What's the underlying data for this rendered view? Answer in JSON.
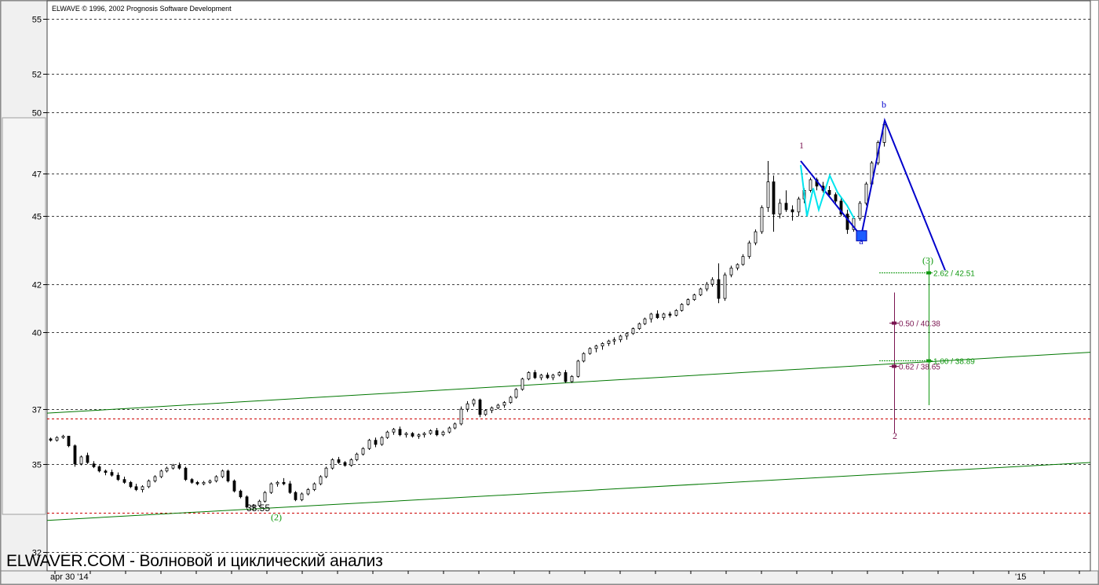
{
  "header": {
    "copyright": "ELWAVE © 1996, 2002 Prognosis Software Development"
  },
  "footer": {
    "watermark": "ELWAVER.COM - Волновой и циклический анализ"
  },
  "x_axis": {
    "start_label": "apr 30 '14",
    "end_label": "'15"
  },
  "colors": {
    "wave_blue": "#0000cc",
    "wave_cyan": "#00e5ee",
    "channel_green": "#007700",
    "target_green": "#119911",
    "target_purple": "#7a1450",
    "red_dotted": "#cc0000",
    "marker_square": "#1c5cff"
  },
  "chart_data": {
    "type": "candlestick",
    "title": "",
    "y_ticks": [
      55,
      52,
      50,
      47,
      45,
      42,
      40,
      37,
      35,
      32
    ],
    "ylim": [
      31.4,
      56
    ],
    "y_scale": "log",
    "grid": true,
    "low_label": "33.55",
    "wave_labels": [
      "1",
      "a",
      "b",
      "(2)",
      "(3)",
      "2"
    ],
    "targets": [
      {
        "label": "2.62 / 42.51",
        "value": 42.51,
        "color": "green"
      },
      {
        "label": "0.50 / 40.38",
        "value": 40.38,
        "color": "purple"
      },
      {
        "label": "1.00 / 38.89",
        "value": 38.89,
        "color": "green"
      },
      {
        "label": "0.62 / 38.65",
        "value": 38.65,
        "color": "purple"
      }
    ],
    "red_levels": [
      36.65,
      33.3
    ],
    "wave_points": {
      "w1": 47.6,
      "a": 44.1,
      "b": 49.6,
      "projection": 42.6
    },
    "candles": [
      [
        35.9,
        35.95,
        35.8,
        35.85
      ],
      [
        35.85,
        36.0,
        35.8,
        35.95
      ],
      [
        35.95,
        36.05,
        35.9,
        36.0
      ],
      [
        36.0,
        36.0,
        35.6,
        35.65
      ],
      [
        35.65,
        35.7,
        34.9,
        35.0
      ],
      [
        35.0,
        35.3,
        34.95,
        35.25
      ],
      [
        35.3,
        35.4,
        35.0,
        35.05
      ],
      [
        35.0,
        35.1,
        34.85,
        34.9
      ],
      [
        34.9,
        34.95,
        34.7,
        34.75
      ],
      [
        34.75,
        34.8,
        34.6,
        34.7
      ],
      [
        34.7,
        34.8,
        34.55,
        34.6
      ],
      [
        34.6,
        34.7,
        34.4,
        34.45
      ],
      [
        34.45,
        34.55,
        34.3,
        34.35
      ],
      [
        34.35,
        34.4,
        34.15,
        34.2
      ],
      [
        34.2,
        34.3,
        34.05,
        34.1
      ],
      [
        34.1,
        34.25,
        34.0,
        34.2
      ],
      [
        34.2,
        34.45,
        34.15,
        34.4
      ],
      [
        34.4,
        34.6,
        34.35,
        34.55
      ],
      [
        34.55,
        34.8,
        34.5,
        34.75
      ],
      [
        34.75,
        34.9,
        34.7,
        34.85
      ],
      [
        34.85,
        35.0,
        34.8,
        34.95
      ],
      [
        34.95,
        35.05,
        34.8,
        34.85
      ],
      [
        34.85,
        34.9,
        34.4,
        34.45
      ],
      [
        34.45,
        34.5,
        34.3,
        34.35
      ],
      [
        34.35,
        34.4,
        34.25,
        34.3
      ],
      [
        34.3,
        34.4,
        34.25,
        34.35
      ],
      [
        34.35,
        34.45,
        34.3,
        34.4
      ],
      [
        34.4,
        34.6,
        34.35,
        34.55
      ],
      [
        34.55,
        34.8,
        34.5,
        34.75
      ],
      [
        34.75,
        34.8,
        34.35,
        34.4
      ],
      [
        34.4,
        34.45,
        34.0,
        34.05
      ],
      [
        34.05,
        34.1,
        33.8,
        33.85
      ],
      [
        33.85,
        33.9,
        33.45,
        33.5
      ],
      [
        33.5,
        33.6,
        33.4,
        33.55
      ],
      [
        33.55,
        33.75,
        33.5,
        33.7
      ],
      [
        33.7,
        34.05,
        33.65,
        34.0
      ],
      [
        34.0,
        34.35,
        33.95,
        34.3
      ],
      [
        34.3,
        34.4,
        34.2,
        34.35
      ],
      [
        34.35,
        34.5,
        34.25,
        34.3
      ],
      [
        34.3,
        34.4,
        33.95,
        34.0
      ],
      [
        34.0,
        34.05,
        33.7,
        33.75
      ],
      [
        33.75,
        34.0,
        33.7,
        33.95
      ],
      [
        33.95,
        34.15,
        33.9,
        34.1
      ],
      [
        34.1,
        34.35,
        34.05,
        34.3
      ],
      [
        34.3,
        34.6,
        34.25,
        34.55
      ],
      [
        34.55,
        34.9,
        34.5,
        34.85
      ],
      [
        34.85,
        35.2,
        34.8,
        35.15
      ],
      [
        35.15,
        35.25,
        35.0,
        35.05
      ],
      [
        35.05,
        35.1,
        34.9,
        34.95
      ],
      [
        34.95,
        35.2,
        34.9,
        35.15
      ],
      [
        35.15,
        35.4,
        35.1,
        35.35
      ],
      [
        35.35,
        35.6,
        35.3,
        35.55
      ],
      [
        35.55,
        35.9,
        35.5,
        35.85
      ],
      [
        35.85,
        35.95,
        35.6,
        35.7
      ],
      [
        35.7,
        36.0,
        35.65,
        35.95
      ],
      [
        35.95,
        36.2,
        35.9,
        36.15
      ],
      [
        36.15,
        36.3,
        36.05,
        36.25
      ],
      [
        36.25,
        36.35,
        36.0,
        36.05
      ],
      [
        36.05,
        36.15,
        35.95,
        36.1
      ],
      [
        36.1,
        36.15,
        35.95,
        36.0
      ],
      [
        36.0,
        36.1,
        35.9,
        36.05
      ],
      [
        36.05,
        36.15,
        35.95,
        36.1
      ],
      [
        36.1,
        36.25,
        36.05,
        36.2
      ],
      [
        36.2,
        36.3,
        36.0,
        36.05
      ],
      [
        36.05,
        36.2,
        36.0,
        36.15
      ],
      [
        36.15,
        36.35,
        36.1,
        36.3
      ],
      [
        36.3,
        36.5,
        36.25,
        36.45
      ],
      [
        36.45,
        37.1,
        36.4,
        37.0
      ],
      [
        37.0,
        37.3,
        36.9,
        37.2
      ],
      [
        37.2,
        37.4,
        37.1,
        37.35
      ],
      [
        37.35,
        37.4,
        36.7,
        36.8
      ],
      [
        36.8,
        37.0,
        36.75,
        36.95
      ],
      [
        36.95,
        37.1,
        36.85,
        37.05
      ],
      [
        37.05,
        37.2,
        37.0,
        37.15
      ],
      [
        37.15,
        37.3,
        37.05,
        37.25
      ],
      [
        37.25,
        37.5,
        37.2,
        37.45
      ],
      [
        37.45,
        37.8,
        37.4,
        37.75
      ],
      [
        37.75,
        38.2,
        37.7,
        38.15
      ],
      [
        38.15,
        38.45,
        38.1,
        38.4
      ],
      [
        38.4,
        38.5,
        38.15,
        38.2
      ],
      [
        38.2,
        38.35,
        38.1,
        38.3
      ],
      [
        38.3,
        38.4,
        38.15,
        38.2
      ],
      [
        38.2,
        38.35,
        38.1,
        38.3
      ],
      [
        38.3,
        38.45,
        38.25,
        38.4
      ],
      [
        38.4,
        38.5,
        38.0,
        38.05
      ],
      [
        38.05,
        38.3,
        38.0,
        38.25
      ],
      [
        38.25,
        38.9,
        38.2,
        38.85
      ],
      [
        38.85,
        39.2,
        38.8,
        39.15
      ],
      [
        39.15,
        39.4,
        39.1,
        39.35
      ],
      [
        39.35,
        39.5,
        39.2,
        39.45
      ],
      [
        39.45,
        39.6,
        39.3,
        39.55
      ],
      [
        39.55,
        39.7,
        39.45,
        39.65
      ],
      [
        39.65,
        39.8,
        39.5,
        39.7
      ],
      [
        39.7,
        39.9,
        39.6,
        39.85
      ],
      [
        39.85,
        40.0,
        39.7,
        39.95
      ],
      [
        39.95,
        40.2,
        39.9,
        40.15
      ],
      [
        40.15,
        40.4,
        40.1,
        40.35
      ],
      [
        40.35,
        40.6,
        40.3,
        40.55
      ],
      [
        40.55,
        40.8,
        40.4,
        40.75
      ],
      [
        40.75,
        40.9,
        40.55,
        40.6
      ],
      [
        40.6,
        40.8,
        40.5,
        40.75
      ],
      [
        40.75,
        40.85,
        40.6,
        40.7
      ],
      [
        40.7,
        40.95,
        40.65,
        40.9
      ],
      [
        40.9,
        41.2,
        40.85,
        41.15
      ],
      [
        41.15,
        41.4,
        41.1,
        41.35
      ],
      [
        41.35,
        41.6,
        41.3,
        41.55
      ],
      [
        41.55,
        41.85,
        41.5,
        41.8
      ],
      [
        41.8,
        42.1,
        41.7,
        42.0
      ],
      [
        42.0,
        42.3,
        41.9,
        42.2
      ],
      [
        42.2,
        42.9,
        41.2,
        41.4
      ],
      [
        41.4,
        42.5,
        41.3,
        42.4
      ],
      [
        42.4,
        42.8,
        42.3,
        42.7
      ],
      [
        42.7,
        42.9,
        42.6,
        42.85
      ],
      [
        42.85,
        43.3,
        42.8,
        43.2
      ],
      [
        43.2,
        43.9,
        43.1,
        43.8
      ],
      [
        43.8,
        44.4,
        43.7,
        44.3
      ],
      [
        44.3,
        45.5,
        44.2,
        45.4
      ],
      [
        45.4,
        47.6,
        45.2,
        46.6
      ],
      [
        46.6,
        46.9,
        44.3,
        45.1
      ],
      [
        45.1,
        45.8,
        44.9,
        45.6
      ],
      [
        45.6,
        46.2,
        45.2,
        45.3
      ],
      [
        45.3,
        45.5,
        44.8,
        45.2
      ],
      [
        45.2,
        45.9,
        45.0,
        45.8
      ],
      [
        45.8,
        46.3,
        45.6,
        46.2
      ],
      [
        46.2,
        46.8,
        46.1,
        46.7
      ],
      [
        46.7,
        46.8,
        46.2,
        46.4
      ],
      [
        46.4,
        46.6,
        46.1,
        46.2
      ],
      [
        46.2,
        46.4,
        45.9,
        46.0
      ],
      [
        46.0,
        46.1,
        45.6,
        45.7
      ],
      [
        45.7,
        45.9,
        45.0,
        45.1
      ],
      [
        45.1,
        45.3,
        44.2,
        44.4
      ],
      [
        44.4,
        45.0,
        44.3,
        44.9
      ],
      [
        44.9,
        45.7,
        44.8,
        45.6
      ],
      [
        45.6,
        46.6,
        45.5,
        46.5
      ],
      [
        46.5,
        47.6,
        46.4,
        47.5
      ],
      [
        47.5,
        48.6,
        47.4,
        48.5
      ],
      [
        48.5,
        49.6,
        48.3,
        49.4
      ]
    ]
  }
}
